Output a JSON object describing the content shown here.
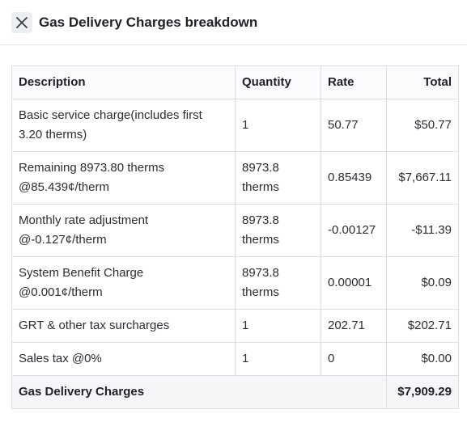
{
  "header": {
    "title": "Gas Delivery Charges breakdown",
    "close_icon": "close-icon"
  },
  "table": {
    "columns": [
      "Description",
      "Quantity",
      "Rate",
      "Total"
    ],
    "rows": [
      {
        "description": "Basic service charge(includes first 3.20 therms)",
        "quantity": "1",
        "rate": "50.77",
        "total": "$50.77"
      },
      {
        "description": "Remaining 8973.80 therms @85.439¢/therm",
        "quantity": "8973.8 therms",
        "rate": "0.85439",
        "total": "$7,667.11"
      },
      {
        "description": "Monthly rate adjustment @-0.127¢/therm",
        "quantity": "8973.8 therms",
        "rate": "-0.00127",
        "total": "-$11.39"
      },
      {
        "description": "System Benefit Charge @0.001¢/therm",
        "quantity": "8973.8 therms",
        "rate": "0.00001",
        "total": "$0.09"
      },
      {
        "description": "GRT & other tax surcharges",
        "quantity": "1",
        "rate": "202.71",
        "total": "$202.71"
      },
      {
        "description": "Sales tax @0%",
        "quantity": "1",
        "rate": "0",
        "total": "$0.00"
      }
    ],
    "footer": {
      "label": "Gas Delivery Charges",
      "total": "$7,909.29"
    }
  }
}
